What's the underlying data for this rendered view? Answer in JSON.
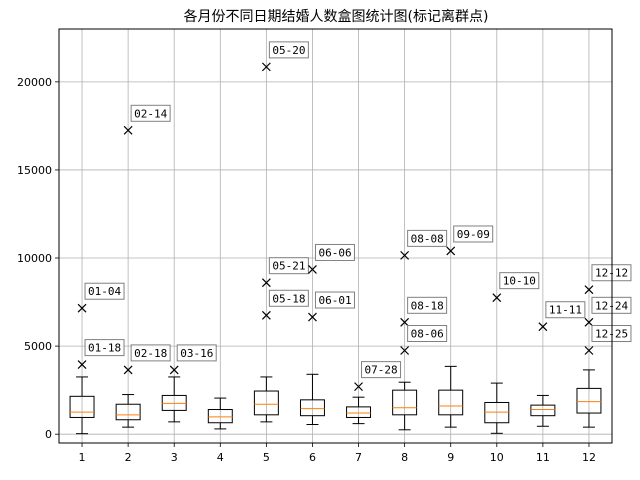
{
  "chart_data": {
    "type": "box",
    "title": "各月份不同日期结婚人数盒图统计图(标记离群点)",
    "xlabel": "",
    "ylabel": "",
    "categories": [
      "1",
      "2",
      "3",
      "4",
      "5",
      "6",
      "7",
      "8",
      "9",
      "10",
      "11",
      "12"
    ],
    "ylim": [
      -500,
      23000
    ],
    "yticks": [
      0,
      5000,
      10000,
      15000,
      20000
    ],
    "grid": true,
    "boxes": [
      {
        "month": "1",
        "whisker_low": 30,
        "q1": 950,
        "median": 1250,
        "q3": 2150,
        "whisker_high": 3250
      },
      {
        "month": "2",
        "whisker_low": 400,
        "q1": 820,
        "median": 1100,
        "q3": 1700,
        "whisker_high": 2250
      },
      {
        "month": "3",
        "whisker_low": 700,
        "q1": 1350,
        "median": 1750,
        "q3": 2200,
        "whisker_high": 3250
      },
      {
        "month": "4",
        "whisker_low": 300,
        "q1": 650,
        "median": 980,
        "q3": 1400,
        "whisker_high": 2050
      },
      {
        "month": "5",
        "whisker_low": 700,
        "q1": 1100,
        "median": 1700,
        "q3": 2450,
        "whisker_high": 3250
      },
      {
        "month": "6",
        "whisker_low": 550,
        "q1": 1050,
        "median": 1450,
        "q3": 1950,
        "whisker_high": 3400
      },
      {
        "month": "7",
        "whisker_low": 600,
        "q1": 950,
        "median": 1200,
        "q3": 1550,
        "whisker_high": 2100
      },
      {
        "month": "8",
        "whisker_low": 250,
        "q1": 1100,
        "median": 1500,
        "q3": 2500,
        "whisker_high": 2950
      },
      {
        "month": "9",
        "whisker_low": 400,
        "q1": 1100,
        "median": 1600,
        "q3": 2500,
        "whisker_high": 3850
      },
      {
        "month": "10",
        "whisker_low": 50,
        "q1": 650,
        "median": 1250,
        "q3": 1800,
        "whisker_high": 2900
      },
      {
        "month": "11",
        "whisker_low": 450,
        "q1": 1050,
        "median": 1400,
        "q3": 1650,
        "whisker_high": 2200
      },
      {
        "month": "12",
        "whisker_low": 400,
        "q1": 1200,
        "median": 1850,
        "q3": 2600,
        "whisker_high": 3650
      }
    ],
    "outliers": [
      {
        "month": "1",
        "value": 7150,
        "label": "01-04"
      },
      {
        "month": "1",
        "value": 3950,
        "label": "01-18"
      },
      {
        "month": "2",
        "value": 17250,
        "label": "02-14"
      },
      {
        "month": "2",
        "value": 3650,
        "label": "02-18"
      },
      {
        "month": "3",
        "value": 3650,
        "label": "03-16"
      },
      {
        "month": "5",
        "value": 20850,
        "label": "05-20"
      },
      {
        "month": "5",
        "value": 8600,
        "label": "05-21"
      },
      {
        "month": "5",
        "value": 6750,
        "label": "05-18"
      },
      {
        "month": "6",
        "value": 9350,
        "label": "06-06"
      },
      {
        "month": "6",
        "value": 6650,
        "label": "06-01"
      },
      {
        "month": "7",
        "value": 2700,
        "label": "07-28"
      },
      {
        "month": "8",
        "value": 10150,
        "label": "08-08"
      },
      {
        "month": "8",
        "value": 6350,
        "label": "08-18"
      },
      {
        "month": "8",
        "value": 4750,
        "label": "08-06"
      },
      {
        "month": "9",
        "value": 10400,
        "label": "09-09"
      },
      {
        "month": "10",
        "value": 7750,
        "label": "10-10"
      },
      {
        "month": "11",
        "value": 6100,
        "label": "11-11"
      },
      {
        "month": "12",
        "value": 8200,
        "label": "12-12"
      },
      {
        "month": "12",
        "value": 6350,
        "label": "12-24"
      },
      {
        "month": "12",
        "value": 4750,
        "label": "12-25"
      }
    ],
    "colors": {
      "box": "#000000",
      "median": "#ff7f0e",
      "grid": "#b0b0b0",
      "outlier": "#000000"
    }
  }
}
